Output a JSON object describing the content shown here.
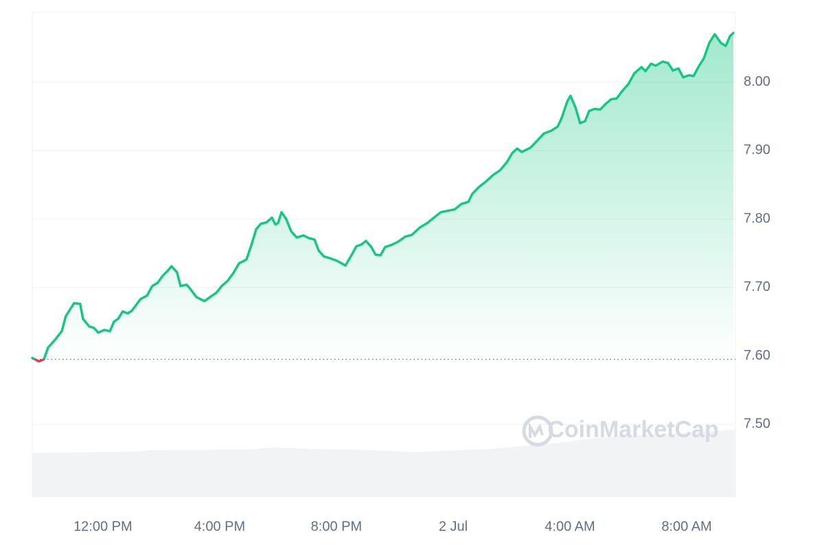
{
  "chart_data": {
    "type": "area",
    "color": "#16c784",
    "down_color": "#ea3943",
    "baseline": 7.595,
    "watermark": "CoinMarketCap",
    "grid": true,
    "xlim": [
      9.58,
      33.67
    ],
    "ylim": [
      7.394,
      8.102
    ],
    "xticks": [
      {
        "value": 12,
        "label": "12:00 PM"
      },
      {
        "value": 16,
        "label": "4:00 PM"
      },
      {
        "value": 20,
        "label": "8:00 PM"
      },
      {
        "value": 24,
        "label": "2 Jul"
      },
      {
        "value": 28,
        "label": "4:00 AM"
      },
      {
        "value": 32,
        "label": "8:00 AM"
      }
    ],
    "yticks": [
      {
        "value": 7.5,
        "label": "7.50"
      },
      {
        "value": 7.6,
        "label": "7.60"
      },
      {
        "value": 7.7,
        "label": "7.70"
      },
      {
        "value": 7.8,
        "label": "7.80"
      },
      {
        "value": 7.9,
        "label": "7.90"
      },
      {
        "value": 8.0,
        "label": "8.00"
      }
    ],
    "x": [
      9.58,
      9.81,
      9.98,
      10.12,
      10.35,
      10.59,
      10.73,
      11.01,
      11.22,
      11.32,
      11.53,
      11.69,
      11.84,
      12.05,
      12.24,
      12.38,
      12.52,
      12.68,
      12.85,
      12.99,
      13.29,
      13.51,
      13.69,
      13.88,
      14.05,
      14.21,
      14.35,
      14.54,
      14.66,
      14.87,
      15.01,
      15.2,
      15.48,
      15.74,
      15.88,
      16.07,
      16.28,
      16.47,
      16.66,
      16.92,
      17.11,
      17.25,
      17.41,
      17.6,
      17.79,
      17.91,
      18.0,
      18.12,
      18.28,
      18.45,
      18.64,
      18.87,
      19.06,
      19.25,
      19.39,
      19.58,
      19.76,
      20.02,
      20.31,
      20.54,
      20.68,
      20.87,
      21.01,
      21.18,
      21.34,
      21.51,
      21.67,
      21.88,
      22.12,
      22.35,
      22.59,
      22.87,
      23.11,
      23.34,
      23.58,
      23.81,
      24.05,
      24.28,
      24.52,
      24.66,
      24.89,
      25.13,
      25.36,
      25.6,
      25.84,
      26.02,
      26.19,
      26.35,
      26.64,
      26.87,
      27.11,
      27.36,
      27.58,
      27.72,
      27.91,
      28.02,
      28.19,
      28.35,
      28.52,
      28.66,
      28.85,
      29.04,
      29.22,
      29.41,
      29.6,
      29.79,
      30.0,
      30.21,
      30.45,
      30.59,
      30.78,
      30.94,
      31.18,
      31.36,
      31.53,
      31.72,
      31.88,
      32.07,
      32.24,
      32.4,
      32.59,
      32.78,
      32.96,
      33.18,
      33.34,
      33.48,
      33.6
    ],
    "values": [
      7.597,
      7.592,
      7.595,
      7.612,
      7.623,
      7.636,
      7.658,
      7.677,
      7.676,
      7.654,
      7.643,
      7.641,
      7.634,
      7.638,
      7.636,
      7.65,
      7.654,
      7.665,
      7.662,
      7.666,
      7.683,
      7.688,
      7.702,
      7.707,
      7.717,
      7.724,
      7.731,
      7.722,
      7.702,
      7.704,
      7.697,
      7.686,
      7.68,
      7.688,
      7.692,
      7.702,
      7.71,
      7.721,
      7.735,
      7.741,
      7.765,
      7.785,
      7.793,
      7.795,
      7.802,
      7.792,
      7.794,
      7.81,
      7.8,
      7.782,
      7.773,
      7.776,
      7.772,
      7.77,
      7.754,
      7.745,
      7.743,
      7.739,
      7.732,
      7.749,
      7.76,
      7.763,
      7.768,
      7.76,
      7.748,
      7.747,
      7.759,
      7.762,
      7.767,
      7.774,
      7.777,
      7.788,
      7.794,
      7.802,
      7.81,
      7.812,
      7.814,
      7.822,
      7.825,
      7.837,
      7.847,
      7.855,
      7.864,
      7.871,
      7.883,
      7.896,
      7.903,
      7.898,
      7.904,
      7.914,
      7.925,
      7.929,
      7.935,
      7.948,
      7.972,
      7.98,
      7.963,
      7.94,
      7.943,
      7.958,
      7.961,
      7.96,
      7.968,
      7.975,
      7.976,
      7.987,
      7.997,
      8.013,
      8.022,
      8.016,
      8.027,
      8.024,
      8.03,
      8.028,
      8.017,
      8.02,
      8.007,
      8.01,
      8.009,
      8.022,
      8.035,
      8.058,
      8.07,
      8.057,
      8.053,
      8.067,
      8.072
    ]
  }
}
